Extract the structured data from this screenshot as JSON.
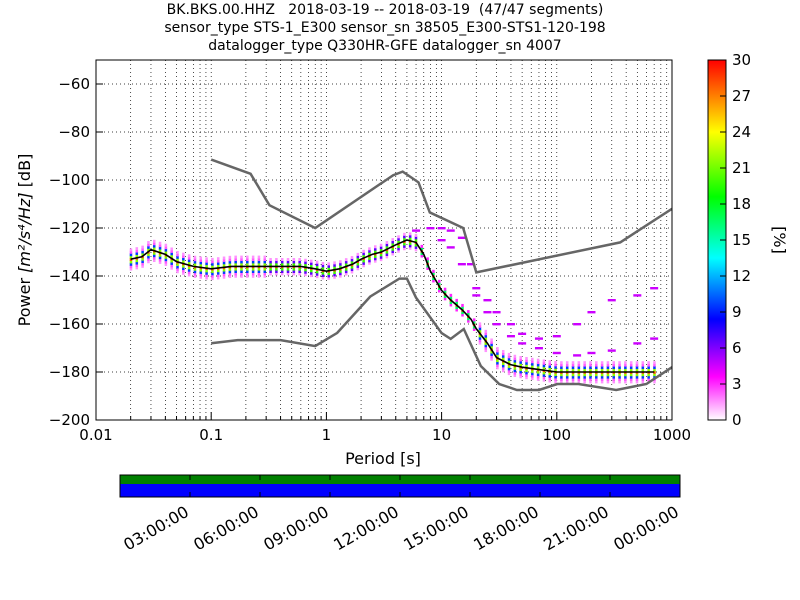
{
  "figure": {
    "title_lines": [
      "BK.BKS.00.HHZ   2018-03-19 -- 2018-03-19  (47/47 segments)",
      "sensor_type STS-1_E300 sensor_sn 38505_E300-STS1-120-198",
      "datalogger_type Q330HR-GFE datalogger_sn 4007"
    ]
  },
  "chart_data": [
    {
      "type": "heatmap",
      "title": "BK.BKS.00.HHZ   2018-03-19 -- 2018-03-19  (47/47 segments)",
      "xlabel": "Period [s]",
      "ylabel_prefix": "Power ",
      "ylabel_math": "[m²/s⁴/Hz]",
      "ylabel_suffix": " [dB]",
      "x_scale": "log",
      "xlim": [
        0.01,
        1000
      ],
      "ylim": [
        -200,
        -50
      ],
      "x_ticks": [
        0.01,
        0.1,
        1,
        10,
        100,
        1000
      ],
      "x_tick_labels": [
        "0.01",
        "0.1",
        "1",
        "10",
        "100",
        "1000"
      ],
      "y_ticks": [
        -200,
        -180,
        -160,
        -140,
        -120,
        -100,
        -80,
        -60
      ],
      "y_tick_labels": [
        "−200",
        "−180",
        "−160",
        "−140",
        "−120",
        "−100",
        "−80",
        "−60"
      ],
      "grid": "dotted vertical at log sub-ticks, horizontal at major ticks",
      "colorbar": {
        "label": "[%]",
        "range": [
          0,
          30
        ],
        "ticks": [
          0,
          3,
          6,
          9,
          12,
          15,
          18,
          21,
          24,
          27,
          30
        ],
        "tick_labels": [
          "0",
          "3",
          "6",
          "9",
          "12",
          "15",
          "18",
          "21",
          "24",
          "27",
          "30"
        ],
        "colors": [
          "#ffffff",
          "#ff00ff",
          "#0000ff",
          "#00ffff",
          "#00ff00",
          "#ffff00",
          "#ff0000"
        ]
      },
      "noise_models": {
        "nhnm": {
          "period": [
            0.1,
            0.22,
            0.32,
            0.8,
            3.8,
            4.6,
            6.3,
            7.9,
            15.4,
            20,
            354.8,
            1000
          ],
          "power": [
            -91.5,
            -97.4,
            -110.5,
            -120,
            -98,
            -96.5,
            -101,
            -113.5,
            -120,
            -138.5,
            -126,
            -112
          ]
        },
        "nlnm": {
          "period": [
            0.1,
            0.17,
            0.4,
            0.8,
            1.24,
            2.4,
            4.3,
            5,
            6,
            10,
            12,
            15.6,
            21.9,
            31.6,
            45,
            70,
            101,
            154,
            328,
            600,
            1000
          ],
          "power": [
            -168,
            -166.7,
            -166.7,
            -169.2,
            -163.7,
            -148.6,
            -141.1,
            -141.1,
            -149,
            -163.8,
            -166.2,
            -162.1,
            -177.5,
            -185,
            -187.5,
            -187.5,
            -185,
            -185,
            -187.5,
            -185,
            -178
          ]
        },
        "color": "#666666"
      },
      "psd_series": [
        {
          "period": [
            0.02,
            0.025,
            0.03,
            0.04,
            0.05,
            0.07,
            0.1,
            0.15,
            0.2,
            0.3,
            0.4,
            0.6,
            0.8,
            1,
            1.3,
            1.7,
            2,
            2.5,
            3,
            4,
            5,
            6,
            7,
            8,
            10,
            12,
            15,
            18,
            20,
            25,
            30,
            40,
            50,
            70,
            100,
            150,
            200,
            300,
            500,
            700
          ],
          "power": [
            -133,
            -132,
            -129,
            -131,
            -134,
            -136,
            -137,
            -136,
            -136,
            -136,
            -136,
            -136,
            -137,
            -138,
            -137,
            -135,
            -133,
            -131,
            -130,
            -127,
            -125,
            -126,
            -131,
            -138,
            -146,
            -150,
            -154,
            -158,
            -162,
            -168,
            -174,
            -177,
            -178,
            -179,
            -180,
            -180,
            -180,
            -180,
            -180,
            -180
          ]
        }
      ],
      "outlier_series": [
        {
          "period": [
            6,
            8,
            10,
            12,
            15,
            18,
            20,
            25,
            30,
            40,
            50,
            70,
            100,
            150,
            200,
            300,
            500,
            700
          ],
          "power": [
            -121,
            -120,
            -120,
            -121,
            -124,
            -135,
            -145,
            -150,
            -155,
            -160,
            -164,
            -166,
            -165,
            -160,
            -155,
            -150,
            -148,
            -145
          ]
        },
        {
          "period": [
            10,
            12,
            15,
            20,
            25,
            30,
            40,
            50,
            70,
            100,
            150,
            200,
            300,
            500,
            700
          ],
          "power": [
            -125,
            -128,
            -135,
            -148,
            -155,
            -160,
            -165,
            -168,
            -170,
            -172,
            -173,
            -172,
            -171,
            -168,
            -166
          ]
        }
      ]
    },
    {
      "type": "table",
      "title": "data availability timeline",
      "x_tick_labels": [
        "03:00:00",
        "06:00:00",
        "09:00:00",
        "12:00:00",
        "15:00:00",
        "18:00:00",
        "21:00:00",
        "00:00:00"
      ],
      "x_tick_fractions": [
        0.125,
        0.25,
        0.375,
        0.5,
        0.625,
        0.75,
        0.875,
        1.0
      ],
      "segments": 47,
      "bands": [
        {
          "name": "",
          "color": "#008000",
          "coverage": 1.0
        },
        {
          "name": "",
          "color": "#0000ff",
          "coverage": 1.0
        }
      ]
    }
  ]
}
